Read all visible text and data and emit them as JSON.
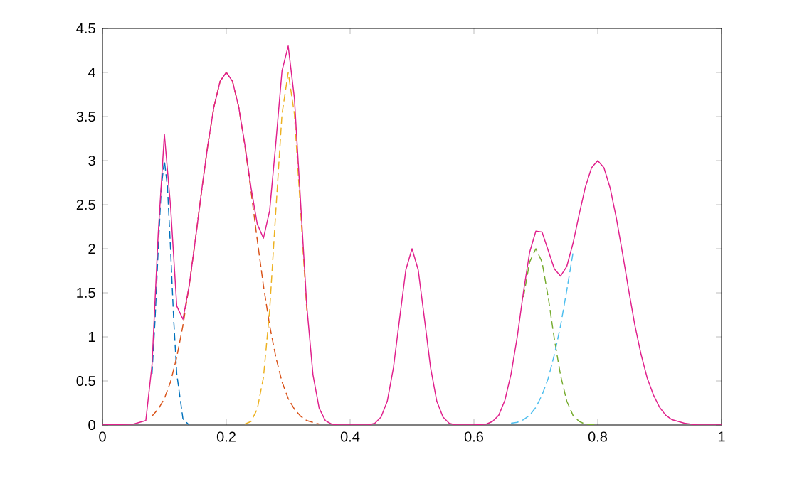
{
  "chart_data": {
    "type": "line",
    "xlim": [
      0,
      1
    ],
    "ylim": [
      0,
      4.5
    ],
    "xticks": [
      0,
      0.2,
      0.4,
      0.6,
      0.8,
      1
    ],
    "yticks": [
      0,
      0.5,
      1,
      1.5,
      2,
      2.5,
      3,
      3.5,
      4,
      4.5
    ],
    "grid": false,
    "marker": "none",
    "series": [
      {
        "color": "#0072bd",
        "line_style": "dashed",
        "x": [
          0.08,
          0.085,
          0.09,
          0.095,
          0.1,
          0.105,
          0.11,
          0.115,
          0.12,
          0.13,
          0.14
        ],
        "values": [
          0.58,
          1.2,
          1.99,
          2.7,
          3,
          2.7,
          1.99,
          1.2,
          0.58,
          0.07,
          0
        ]
      },
      {
        "color": "#d95319",
        "line_style": "dashed",
        "x": [
          0.08,
          0.09,
          0.1,
          0.11,
          0.12,
          0.13,
          0.14,
          0.15,
          0.16,
          0.17,
          0.18,
          0.19,
          0.2,
          0.21,
          0.22,
          0.23,
          0.24,
          0.25,
          0.26,
          0.27,
          0.28,
          0.29,
          0.3,
          0.31,
          0.32,
          0.33,
          0.34,
          0.35
        ],
        "values": [
          0.1,
          0.18,
          0.3,
          0.49,
          0.77,
          1.13,
          1.58,
          2.1,
          2.65,
          3.17,
          3.61,
          3.9,
          4,
          3.9,
          3.61,
          3.17,
          2.65,
          2.1,
          1.58,
          1.13,
          0.77,
          0.49,
          0.3,
          0.18,
          0.1,
          0.05,
          0.03,
          0.01
        ]
      },
      {
        "color": "#edb120",
        "line_style": "dashed",
        "x": [
          0.23,
          0.24,
          0.25,
          0.26,
          0.27,
          0.28,
          0.29,
          0.3,
          0.31,
          0.32,
          0.33
        ],
        "values": [
          0.01,
          0.04,
          0.18,
          0.54,
          1.3,
          2.43,
          3.53,
          4,
          3.53,
          2.43,
          1.3
        ]
      },
      {
        "color": "#77ac30",
        "line_style": "dashed",
        "x": [
          0.68,
          0.69,
          0.7,
          0.71,
          0.72,
          0.73,
          0.74,
          0.75,
          0.76,
          0.77,
          0.78,
          0.8
        ],
        "values": [
          1.45,
          1.85,
          2,
          1.85,
          1.45,
          0.97,
          0.56,
          0.27,
          0.11,
          0.04,
          0.01,
          0
        ]
      },
      {
        "color": "#4dbeee",
        "line_style": "dashed",
        "x": [
          0.66,
          0.67,
          0.68,
          0.69,
          0.7,
          0.71,
          0.72,
          0.73,
          0.74,
          0.75,
          0.76
        ],
        "values": [
          0.02,
          0.03,
          0.06,
          0.11,
          0.2,
          0.34,
          0.53,
          0.8,
          1.13,
          1.53,
          1.95
        ]
      },
      {
        "color": "#e0208c",
        "line_style": "solid",
        "x": [
          0,
          0.05,
          0.06,
          0.07,
          0.08,
          0.09,
          0.1,
          0.11,
          0.12,
          0.13,
          0.14,
          0.15,
          0.16,
          0.17,
          0.18,
          0.19,
          0.2,
          0.21,
          0.22,
          0.23,
          0.24,
          0.25,
          0.26,
          0.27,
          0.28,
          0.29,
          0.3,
          0.31,
          0.32,
          0.33,
          0.34,
          0.35,
          0.36,
          0.37,
          0.38,
          0.43,
          0.44,
          0.45,
          0.46,
          0.47,
          0.48,
          0.49,
          0.5,
          0.51,
          0.52,
          0.53,
          0.54,
          0.55,
          0.56,
          0.57,
          0.6,
          0.62,
          0.63,
          0.64,
          0.65,
          0.66,
          0.67,
          0.68,
          0.69,
          0.7,
          0.71,
          0.72,
          0.73,
          0.74,
          0.75,
          0.76,
          0.77,
          0.78,
          0.79,
          0.8,
          0.81,
          0.82,
          0.83,
          0.84,
          0.85,
          0.86,
          0.87,
          0.88,
          0.89,
          0.9,
          0.91,
          0.92,
          0.94,
          0.96,
          1
        ],
        "values": [
          0,
          0.01,
          0.03,
          0.05,
          0.68,
          2.17,
          3.3,
          2.48,
          1.35,
          1.2,
          1.58,
          2.1,
          2.65,
          3.17,
          3.61,
          3.9,
          4,
          3.9,
          3.61,
          3.18,
          2.69,
          2.28,
          2.12,
          2.43,
          3.2,
          4.02,
          4.3,
          3.71,
          2.53,
          1.35,
          0.57,
          0.19,
          0.05,
          0.01,
          0,
          0,
          0.02,
          0.09,
          0.27,
          0.65,
          1.21,
          1.76,
          2,
          1.76,
          1.21,
          0.65,
          0.27,
          0.09,
          0.02,
          0,
          0,
          0.01,
          0.04,
          0.11,
          0.28,
          0.58,
          1,
          1.51,
          1.96,
          2.2,
          2.19,
          1.98,
          1.77,
          1.69,
          1.8,
          2.06,
          2.39,
          2.7,
          2.92,
          3,
          2.92,
          2.69,
          2.35,
          1.95,
          1.53,
          1.13,
          0.8,
          0.53,
          0.34,
          0.2,
          0.11,
          0.06,
          0.02,
          0,
          0
        ]
      }
    ]
  }
}
